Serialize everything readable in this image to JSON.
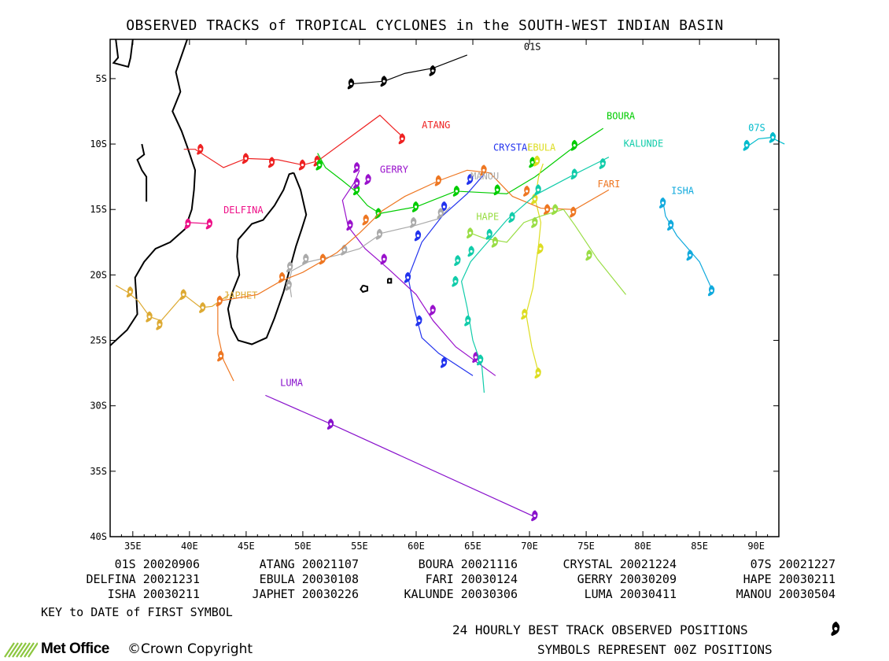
{
  "title": "OBSERVED TRACKS of TROPICAL CYCLONES in the SOUTH-WEST INDIAN BASIN",
  "axes": {
    "lon_ticks": [
      "35E",
      "40E",
      "45E",
      "50E",
      "55E",
      "60E",
      "65E",
      "70E",
      "75E",
      "80E",
      "85E",
      "90E"
    ],
    "lon_values": [
      35,
      40,
      45,
      50,
      55,
      60,
      65,
      70,
      75,
      80,
      85,
      90
    ],
    "lat_ticks": [
      "5S",
      "10S",
      "15S",
      "20S",
      "25S",
      "30S",
      "35S",
      "40S"
    ],
    "lat_values": [
      5,
      10,
      15,
      20,
      25,
      30,
      35,
      40
    ],
    "lon_range": [
      33,
      92
    ],
    "lat_range": [
      2,
      40
    ]
  },
  "storms": [
    {
      "name": "01S",
      "date": "20020906",
      "color": "#000000",
      "label_lon": 69.5,
      "label_lat": 2.8,
      "track": [
        [
          64.5,
          3.2
        ],
        [
          61.5,
          4.2
        ],
        [
          59,
          4.6
        ],
        [
          57.2,
          5.2
        ],
        [
          54.3,
          5.4
        ]
      ],
      "positions": [
        [
          61.5,
          4.4
        ],
        [
          57.2,
          5.2
        ],
        [
          54.3,
          5.4
        ]
      ]
    },
    {
      "name": "ATANG",
      "date": "20021107",
      "color": "#ee2222",
      "label_lon": 60.5,
      "label_lat": 8.8,
      "track": [
        [
          59,
          9.6
        ],
        [
          58,
          8.8
        ],
        [
          56.8,
          7.8
        ],
        [
          51.3,
          11.3
        ],
        [
          50,
          11.6
        ],
        [
          47.8,
          11.2
        ],
        [
          45,
          11.1
        ],
        [
          43,
          11.8
        ],
        [
          40.5,
          10.4
        ],
        [
          39.5,
          10.4
        ]
      ],
      "positions": [
        [
          58.8,
          9.6
        ],
        [
          51.3,
          11.3
        ],
        [
          50,
          11.6
        ],
        [
          47.3,
          11.4
        ],
        [
          45,
          11.1
        ],
        [
          41,
          10.4
        ]
      ]
    },
    {
      "name": "BOURA",
      "date": "20021116",
      "color": "#00cc00",
      "label_lon": 76.8,
      "label_lat": 8.1,
      "track": [
        [
          76.5,
          8.8
        ],
        [
          73.5,
          10.5
        ],
        [
          70.5,
          12.5
        ],
        [
          68,
          13.8
        ],
        [
          63.5,
          13.6
        ],
        [
          60,
          14.8
        ],
        [
          56.8,
          15.3
        ],
        [
          55.7,
          14.7
        ],
        [
          54.5,
          13.5
        ],
        [
          53.5,
          12.8
        ],
        [
          52,
          11.8
        ],
        [
          51.3,
          10.7
        ]
      ],
      "positions": [
        [
          74,
          10.1
        ],
        [
          70.3,
          11.4
        ],
        [
          67.2,
          13.5
        ],
        [
          63.6,
          13.6
        ],
        [
          60,
          14.8
        ],
        [
          56.7,
          15.3
        ],
        [
          54.8,
          13.5
        ],
        [
          51.5,
          11.6
        ]
      ]
    },
    {
      "name": "CRYSTAL",
      "date": "20021224",
      "color": "#2233ee",
      "label_lon": 66.8,
      "label_lat": 10.5,
      "track": [
        [
          66,
          12.3
        ],
        [
          64.5,
          13.8
        ],
        [
          62.3,
          15.5
        ],
        [
          60.5,
          17.5
        ],
        [
          59.3,
          20.2
        ],
        [
          59.8,
          22.5
        ],
        [
          60.5,
          24.8
        ],
        [
          62,
          26
        ],
        [
          65,
          27.7
        ]
      ],
      "positions": [
        [
          64.8,
          12.7
        ],
        [
          62.5,
          14.8
        ],
        [
          60.2,
          17
        ],
        [
          59.3,
          20.2
        ],
        [
          60.3,
          23.5
        ],
        [
          62.5,
          26.7
        ]
      ]
    },
    {
      "name": "07S",
      "date": "20021227",
      "color": "#00bbcc",
      "label_lon": 89.3,
      "label_lat": 9,
      "track": [
        [
          92.5,
          10
        ],
        [
          91.3,
          9.5
        ],
        [
          90.2,
          9.6
        ],
        [
          89.2,
          10.2
        ]
      ],
      "positions": [
        [
          91.5,
          9.5
        ],
        [
          89.2,
          10.1
        ]
      ]
    },
    {
      "name": "DELFINA",
      "date": "20021231",
      "color": "#ee1188",
      "label_lon": 43,
      "label_lat": 15.3,
      "track": [
        [
          42,
          16.1
        ],
        [
          40,
          16
        ]
      ],
      "positions": [
        [
          41.8,
          16.1
        ],
        [
          39.9,
          16.1
        ]
      ]
    },
    {
      "name": "EBULA",
      "date": "20030108",
      "color": "#dddd22",
      "label_lon": 69.8,
      "label_lat": 10.5,
      "track": [
        [
          71.2,
          11.5
        ],
        [
          70.8,
          12.5
        ],
        [
          70.5,
          14.2
        ],
        [
          71,
          16
        ],
        [
          70.8,
          17.7
        ],
        [
          70.3,
          21
        ],
        [
          69.7,
          23
        ],
        [
          70.2,
          25.5
        ],
        [
          70.8,
          27.5
        ]
      ],
      "positions": [
        [
          70.7,
          11.3
        ],
        [
          70.5,
          14.2
        ],
        [
          71,
          18
        ],
        [
          69.6,
          23
        ],
        [
          70.8,
          27.5
        ]
      ]
    },
    {
      "name": "FARI",
      "date": "20030124",
      "color": "#ee7722",
      "label_lon": 76,
      "label_lat": 13.3,
      "track": [
        [
          77,
          13.5
        ],
        [
          74,
          15
        ],
        [
          71,
          14.9
        ],
        [
          68.5,
          14
        ],
        [
          66.5,
          12.2
        ],
        [
          64.5,
          12
        ],
        [
          62,
          12.8
        ],
        [
          59,
          14
        ],
        [
          57,
          15.1
        ],
        [
          55,
          16.8
        ]
      ],
      "positions": [
        [
          73.9,
          15.2
        ],
        [
          71.6,
          15
        ],
        [
          69.8,
          13.6
        ],
        [
          66,
          12
        ],
        [
          62,
          12.8
        ],
        [
          55.6,
          15.8
        ]
      ]
    },
    {
      "name": "GERRY",
      "date": "20030209",
      "color": "#9911cc",
      "label_lon": 56.8,
      "label_lat": 12.2,
      "track": [
        [
          55,
          12
        ],
        [
          54.5,
          13
        ],
        [
          53.5,
          14.3
        ],
        [
          54,
          16.3
        ],
        [
          55.5,
          18
        ],
        [
          57.5,
          19.5
        ],
        [
          60,
          21.5
        ],
        [
          61.5,
          23.5
        ],
        [
          63.5,
          25.5
        ],
        [
          67,
          27.7
        ]
      ],
      "positions": [
        [
          54.8,
          11.8
        ],
        [
          55.8,
          12.7
        ],
        [
          54.8,
          13
        ],
        [
          54.2,
          16.2
        ],
        [
          57.2,
          18.8
        ],
        [
          61.5,
          22.7
        ],
        [
          65.3,
          26.3
        ]
      ]
    },
    {
      "name": "HAPE",
      "date": "20030211",
      "color": "#99dd44",
      "label_lon": 65.3,
      "label_lat": 15.8,
      "track": [
        [
          78.5,
          21.5
        ],
        [
          76,
          18.8
        ],
        [
          74,
          16.2
        ],
        [
          73,
          15
        ],
        [
          71,
          15.5
        ],
        [
          69.5,
          16
        ],
        [
          68,
          17.5
        ],
        [
          66,
          17.2
        ],
        [
          64.8,
          16.8
        ]
      ],
      "positions": [
        [
          75.3,
          18.5
        ],
        [
          72.3,
          15
        ],
        [
          70.5,
          16
        ],
        [
          67,
          17.5
        ],
        [
          64.8,
          16.8
        ]
      ]
    },
    {
      "name": "ISHA",
      "date": "20030211",
      "color": "#11aadd",
      "label_lon": 82.5,
      "label_lat": 13.8,
      "track": [
        [
          81.8,
          14.5
        ],
        [
          82,
          15.5
        ],
        [
          83,
          17
        ],
        [
          85,
          19
        ],
        [
          86.2,
          21.3
        ]
      ],
      "positions": [
        [
          81.8,
          14.5
        ],
        [
          82.5,
          16.2
        ],
        [
          84.2,
          18.5
        ],
        [
          86.1,
          21.2
        ]
      ]
    },
    {
      "name": "JAPHET",
      "date": "20030226",
      "color": "#ddaa33",
      "label_lon": 43,
      "label_lat": 21.8,
      "track": [
        [
          33.5,
          20.8
        ],
        [
          34.5,
          21.3
        ],
        [
          35.5,
          22
        ],
        [
          36.5,
          23.2
        ],
        [
          37.5,
          23.5
        ],
        [
          38.5,
          22.5
        ],
        [
          39.5,
          21.5
        ],
        [
          41,
          22.5
        ],
        [
          42,
          22.4
        ],
        [
          43.5,
          21.5
        ]
      ],
      "positions": [
        [
          34.8,
          21.3
        ],
        [
          36.5,
          23.2
        ],
        [
          37.4,
          23.8
        ],
        [
          39.5,
          21.5
        ],
        [
          41.2,
          22.5
        ]
      ]
    },
    {
      "name": "KALUNDE",
      "date": "20030306",
      "color": "#11ccaa",
      "label_lon": 78.3,
      "label_lat": 10.2,
      "track": [
        [
          77,
          11
        ],
        [
          74,
          12.3
        ],
        [
          70.5,
          13.9
        ],
        [
          68,
          15.8
        ],
        [
          66,
          17.8
        ],
        [
          64.8,
          19
        ],
        [
          64,
          20.5
        ],
        [
          64.5,
          22.5
        ],
        [
          65,
          25
        ],
        [
          65.8,
          27
        ],
        [
          66,
          29
        ]
      ],
      "positions": [
        [
          76.5,
          11.5
        ],
        [
          74,
          12.3
        ],
        [
          70.8,
          13.5
        ],
        [
          68.5,
          15.6
        ],
        [
          66.5,
          16.9
        ],
        [
          64.9,
          18.2
        ],
        [
          63.7,
          18.9
        ],
        [
          63.5,
          20.5
        ],
        [
          64.6,
          23.5
        ],
        [
          65.7,
          26.5
        ]
      ]
    },
    {
      "name": "LUMA",
      "date": "20030411",
      "color": "#8811cc",
      "label_lon": 48,
      "label_lat": 28.5,
      "track": [
        [
          46.7,
          29.2
        ],
        [
          52.5,
          31.4
        ],
        [
          70.5,
          38.5
        ]
      ],
      "positions": [
        [
          52.5,
          31.4
        ],
        [
          70.5,
          38.4
        ]
      ]
    },
    {
      "name": "MANOU",
      "date": "20030504",
      "color": "#aaaaaa",
      "label_lon": 64.8,
      "label_lat": 12.7,
      "track": [
        [
          63,
          14.8
        ],
        [
          62,
          15.7
        ],
        [
          60,
          16.2
        ],
        [
          57,
          16.8
        ],
        [
          55,
          18
        ],
        [
          53,
          18.5
        ],
        [
          50.5,
          19
        ],
        [
          49,
          19.7
        ],
        [
          48.8,
          20.5
        ],
        [
          49,
          21.7
        ]
      ],
      "positions": [
        [
          62.2,
          15.3
        ],
        [
          59.8,
          16
        ],
        [
          56.8,
          16.9
        ],
        [
          53.7,
          18.1
        ],
        [
          50.3,
          18.8
        ],
        [
          48.9,
          19.4
        ],
        [
          48.8,
          20.8
        ]
      ]
    },
    {
      "name": "",
      "date": "",
      "color": "#ee7722",
      "label_lon": 0,
      "label_lat": 0,
      "track": [
        [
          43.9,
          28.1
        ],
        [
          43,
          26.5
        ],
        [
          42.5,
          24.5
        ],
        [
          42.5,
          22
        ],
        [
          44,
          21.8
        ],
        [
          46,
          21.5
        ],
        [
          48,
          20.5
        ],
        [
          50,
          19.8
        ],
        [
          53,
          18.3
        ],
        [
          55,
          16.8
        ]
      ],
      "positions": [
        [
          42.8,
          26.2
        ],
        [
          42.7,
          22
        ],
        [
          48.2,
          20.2
        ],
        [
          51.8,
          18.8
        ]
      ],
      "secondary": true
    }
  ],
  "key": [
    {
      "name": "01S",
      "date": "20020906"
    },
    {
      "name": "ATANG",
      "date": "20021107"
    },
    {
      "name": "BOURA",
      "date": "20021116"
    },
    {
      "name": "CRYSTAL",
      "date": "20021224"
    },
    {
      "name": "07S",
      "date": "20021227"
    },
    {
      "name": "DELFINA",
      "date": "20021231"
    },
    {
      "name": "EBULA",
      "date": "20030108"
    },
    {
      "name": "FARI",
      "date": "20030124"
    },
    {
      "name": "GERRY",
      "date": "20030209"
    },
    {
      "name": "HAPE",
      "date": "20030211"
    },
    {
      "name": "ISHA",
      "date": "20030211"
    },
    {
      "name": "JAPHET",
      "date": "20030226"
    },
    {
      "name": "KALUNDE",
      "date": "20030306"
    },
    {
      "name": "LUMA",
      "date": "20030411"
    },
    {
      "name": "MANOU",
      "date": "20030504"
    }
  ],
  "key_note": "KEY to DATE of FIRST SYMBOL",
  "footer": {
    "line1": "24 HOURLY BEST TRACK OBSERVED POSITIONS",
    "line2": "SYMBOLS REPRESENT 00Z POSITIONS",
    "logo_text": "Met Office",
    "copyright": "©Crown Copyright"
  },
  "colors": {
    "frame": "#000000",
    "coast": "#000000",
    "logo_green": "#8cc63f"
  }
}
